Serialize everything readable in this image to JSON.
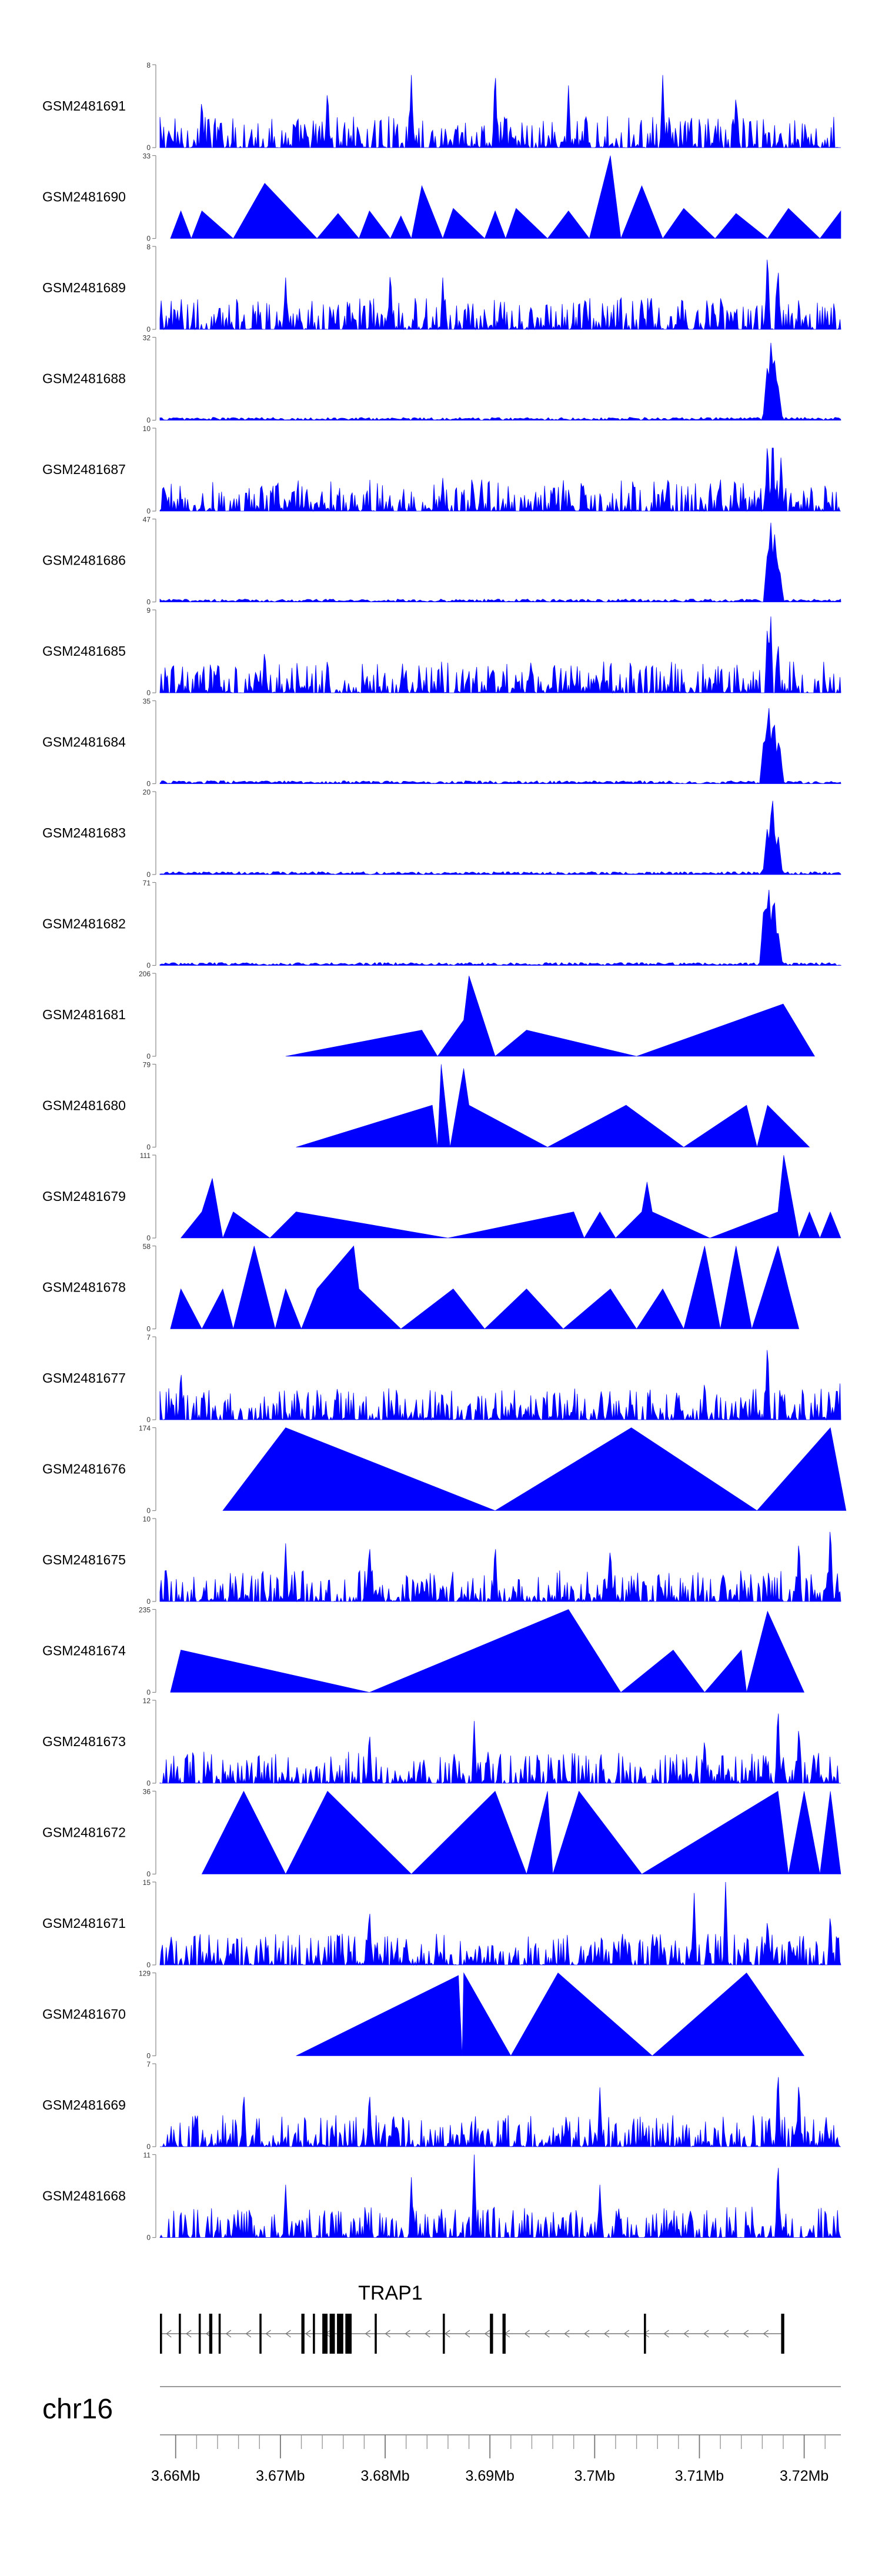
{
  "chart_data": {
    "type": "area",
    "genome": {
      "chromosome": "chr16",
      "x_range_mb": [
        3.6585,
        3.7235
      ],
      "x_ticks_mb": [
        3.66,
        3.67,
        3.68,
        3.69,
        3.7,
        3.71,
        3.72
      ],
      "x_tick_labels": [
        "3.66Mb",
        "3.67Mb",
        "3.68Mb",
        "3.69Mb",
        "3.7Mb",
        "3.71Mb",
        "3.72Mb"
      ]
    },
    "fill_color": "#0000ff",
    "series": [
      {
        "name": "GSM2481691",
        "ymax": 8,
        "ymax_label": "8",
        "ymin_label": "0",
        "style": "dense",
        "peaks": [
          [
            3.6625,
            5
          ],
          [
            3.6745,
            6
          ],
          [
            3.6825,
            7
          ],
          [
            3.6905,
            8
          ],
          [
            3.6975,
            6
          ],
          [
            3.7065,
            7
          ],
          [
            3.7135,
            5.5
          ]
        ]
      },
      {
        "name": "GSM2481690",
        "ymax": 33,
        "ymax_label": "33",
        "ymin_label": "0",
        "style": "sparse",
        "points": [
          [
            3.6595,
            0
          ],
          [
            3.6605,
            11
          ],
          [
            3.6615,
            0
          ],
          [
            3.6625,
            11
          ],
          [
            3.6655,
            0
          ],
          [
            3.6685,
            22
          ],
          [
            3.6735,
            0
          ],
          [
            3.6755,
            10
          ],
          [
            3.6775,
            0
          ],
          [
            3.6785,
            11
          ],
          [
            3.6805,
            0
          ],
          [
            3.6815,
            9
          ],
          [
            3.6825,
            0
          ],
          [
            3.6835,
            21
          ],
          [
            3.6855,
            0
          ],
          [
            3.6865,
            12
          ],
          [
            3.6895,
            0
          ],
          [
            3.6905,
            11
          ],
          [
            3.6915,
            0
          ],
          [
            3.6925,
            12
          ],
          [
            3.6955,
            0
          ],
          [
            3.6975,
            11
          ],
          [
            3.6995,
            0
          ],
          [
            3.7015,
            33
          ],
          [
            3.7025,
            0
          ],
          [
            3.7045,
            21
          ],
          [
            3.7065,
            0
          ],
          [
            3.7085,
            12
          ],
          [
            3.7115,
            0
          ],
          [
            3.7135,
            10
          ],
          [
            3.7165,
            0
          ],
          [
            3.7185,
            12
          ],
          [
            3.7215,
            0
          ],
          [
            3.7235,
            11
          ]
        ]
      },
      {
        "name": "GSM2481689",
        "ymax": 8,
        "ymax_label": "8",
        "ymin_label": "0",
        "style": "dense",
        "peaks": [
          [
            3.6705,
            5
          ],
          [
            3.6805,
            6
          ],
          [
            3.6855,
            5
          ],
          [
            3.7165,
            8
          ],
          [
            3.7175,
            6.5
          ]
        ]
      },
      {
        "name": "GSM2481688",
        "ymax": 32,
        "ymax_label": "32",
        "ymin_label": "0",
        "style": "low",
        "peaks": [
          [
            3.7165,
            22
          ],
          [
            3.71685,
            32
          ],
          [
            3.7172,
            24
          ],
          [
            3.7175,
            14
          ]
        ]
      },
      {
        "name": "GSM2481687",
        "ymax": 10,
        "ymax_label": "10",
        "ymin_label": "0",
        "style": "dense",
        "peaks": [
          [
            3.6725,
            3
          ],
          [
            3.6855,
            4
          ],
          [
            3.7165,
            9
          ],
          [
            3.717,
            10
          ],
          [
            3.7178,
            7
          ]
        ]
      },
      {
        "name": "GSM2481686",
        "ymax": 47,
        "ymax_label": "47",
        "ymin_label": "0",
        "style": "low",
        "peaks": [
          [
            3.71655,
            32
          ],
          [
            3.7168,
            47
          ],
          [
            3.7172,
            40
          ],
          [
            3.7176,
            22
          ]
        ]
      },
      {
        "name": "GSM2481685",
        "ymax": 9,
        "ymax_label": "9",
        "ymin_label": "0",
        "style": "dense",
        "peaks": [
          [
            3.6685,
            5
          ],
          [
            3.6745,
            4
          ],
          [
            3.7165,
            8
          ],
          [
            3.7168,
            9
          ],
          [
            3.7175,
            6
          ]
        ]
      },
      {
        "name": "GSM2481684",
        "ymax": 35,
        "ymax_label": "35",
        "ymin_label": "0",
        "style": "low",
        "peaks": [
          [
            3.7162,
            22
          ],
          [
            3.7166,
            35
          ],
          [
            3.7171,
            30
          ],
          [
            3.7176,
            20
          ]
        ]
      },
      {
        "name": "GSM2481683",
        "ymax": 20,
        "ymax_label": "20",
        "ymin_label": "0",
        "style": "low",
        "peaks": [
          [
            3.7165,
            12
          ],
          [
            3.71695,
            20
          ],
          [
            3.7175,
            10
          ]
        ]
      },
      {
        "name": "GSM2481682",
        "ymax": 71,
        "ymax_label": "71",
        "ymin_label": "0",
        "style": "low",
        "peaks": [
          [
            3.7162,
            58
          ],
          [
            3.7166,
            71
          ],
          [
            3.7171,
            65
          ],
          [
            3.7175,
            30
          ]
        ]
      },
      {
        "name": "GSM2481681",
        "ymax": 206,
        "ymax_label": "206",
        "ymin_label": "0",
        "style": "sparse",
        "points": [
          [
            3.6705,
            0
          ],
          [
            3.6835,
            65
          ],
          [
            3.685,
            0
          ],
          [
            3.6875,
            90
          ],
          [
            3.688,
            200
          ],
          [
            3.6905,
            0
          ],
          [
            3.6935,
            65
          ],
          [
            3.704,
            0
          ],
          [
            3.718,
            130
          ],
          [
            3.721,
            0
          ]
        ]
      },
      {
        "name": "GSM2481680",
        "ymax": 79,
        "ymax_label": "79",
        "ymin_label": "0",
        "style": "sparse",
        "points": [
          [
            3.6715,
            0
          ],
          [
            3.6845,
            40
          ],
          [
            3.685,
            0
          ],
          [
            3.68535,
            79
          ],
          [
            3.6862,
            0
          ],
          [
            3.6875,
            75
          ],
          [
            3.688,
            40
          ],
          [
            3.6955,
            0
          ],
          [
            3.703,
            40
          ],
          [
            3.7085,
            0
          ],
          [
            3.7145,
            40
          ],
          [
            3.7155,
            0
          ],
          [
            3.7165,
            40
          ],
          [
            3.7205,
            0
          ]
        ]
      },
      {
        "name": "GSM2481679",
        "ymax": 111,
        "ymax_label": "111",
        "ymin_label": "0",
        "style": "sparse",
        "points": [
          [
            3.6605,
            0
          ],
          [
            3.6625,
            35
          ],
          [
            3.6635,
            80
          ],
          [
            3.6645,
            0
          ],
          [
            3.6655,
            35
          ],
          [
            3.669,
            0
          ],
          [
            3.6715,
            35
          ],
          [
            3.686,
            0
          ],
          [
            3.698,
            35
          ],
          [
            3.699,
            0
          ],
          [
            3.7005,
            35
          ],
          [
            3.702,
            0
          ],
          [
            3.7045,
            35
          ],
          [
            3.705,
            75
          ],
          [
            3.7055,
            35
          ],
          [
            3.711,
            0
          ],
          [
            3.7175,
            35
          ],
          [
            3.71805,
            111
          ],
          [
            3.7195,
            0
          ],
          [
            3.7205,
            35
          ],
          [
            3.7215,
            0
          ],
          [
            3.7225,
            35
          ],
          [
            3.7235,
            0
          ]
        ]
      },
      {
        "name": "GSM2481678",
        "ymax": 58,
        "ymax_label": "58",
        "ymin_label": "0",
        "style": "sparse",
        "points": [
          [
            3.6595,
            0
          ],
          [
            3.6605,
            28
          ],
          [
            3.6625,
            0
          ],
          [
            3.6645,
            28
          ],
          [
            3.6655,
            0
          ],
          [
            3.6675,
            58
          ],
          [
            3.6695,
            0
          ],
          [
            3.6705,
            28
          ],
          [
            3.672,
            0
          ],
          [
            3.6735,
            28
          ],
          [
            3.677,
            58
          ],
          [
            3.6775,
            28
          ],
          [
            3.6815,
            0
          ],
          [
            3.6865,
            28
          ],
          [
            3.6895,
            0
          ],
          [
            3.6935,
            28
          ],
          [
            3.697,
            0
          ],
          [
            3.7015,
            28
          ],
          [
            3.704,
            0
          ],
          [
            3.7065,
            28
          ],
          [
            3.7085,
            0
          ],
          [
            3.7105,
            58
          ],
          [
            3.712,
            0
          ],
          [
            3.7135,
            58
          ],
          [
            3.715,
            0
          ],
          [
            3.7175,
            58
          ],
          [
            3.7185,
            28
          ],
          [
            3.7195,
            0
          ]
        ]
      },
      {
        "name": "GSM2481677",
        "ymax": 7,
        "ymax_label": "7",
        "ymin_label": "0",
        "style": "dense",
        "peaks": [
          [
            3.6605,
            4.5
          ],
          [
            3.7165,
            7
          ],
          [
            3.7235,
            4.5
          ],
          [
            3.7105,
            3.5
          ]
        ]
      },
      {
        "name": "GSM2481676",
        "ymax": 174,
        "ymax_label": "174",
        "ymin_label": "0",
        "style": "sparse",
        "points": [
          [
            3.6645,
            0
          ],
          [
            3.6705,
            174
          ],
          [
            3.6905,
            0
          ],
          [
            3.7035,
            174
          ],
          [
            3.7155,
            0
          ],
          [
            3.7225,
            174
          ],
          [
            3.724,
            0
          ]
        ]
      },
      {
        "name": "GSM2481675",
        "ymax": 10,
        "ymax_label": "10",
        "ymin_label": "0",
        "style": "dense",
        "peaks": [
          [
            3.6705,
            7
          ],
          [
            3.6785,
            7.5
          ],
          [
            3.6905,
            7.5
          ],
          [
            3.7015,
            7
          ],
          [
            3.7225,
            10
          ],
          [
            3.7195,
            8
          ]
        ]
      },
      {
        "name": "GSM2481674",
        "ymax": 235,
        "ymax_label": "235",
        "ymin_label": "0",
        "style": "sparse",
        "points": [
          [
            3.6595,
            0
          ],
          [
            3.6605,
            120
          ],
          [
            3.6785,
            0
          ],
          [
            3.6975,
            235
          ],
          [
            3.7025,
            0
          ],
          [
            3.7075,
            120
          ],
          [
            3.7105,
            0
          ],
          [
            3.714,
            120
          ],
          [
            3.7145,
            0
          ],
          [
            3.7165,
            230
          ],
          [
            3.72,
            0
          ]
        ]
      },
      {
        "name": "GSM2481673",
        "ymax": 12,
        "ymax_label": "12",
        "ymin_label": "0",
        "style": "dense",
        "peaks": [
          [
            3.6785,
            8
          ],
          [
            3.6885,
            9
          ],
          [
            3.7105,
            7
          ],
          [
            3.7175,
            12
          ],
          [
            3.7195,
            9
          ]
        ]
      },
      {
        "name": "GSM2481672",
        "ymax": 36,
        "ymax_label": "36",
        "ymin_label": "0",
        "style": "sparse",
        "points": [
          [
            3.6625,
            0
          ],
          [
            3.6665,
            36
          ],
          [
            3.6705,
            0
          ],
          [
            3.6745,
            36
          ],
          [
            3.6825,
            0
          ],
          [
            3.6905,
            36
          ],
          [
            3.6935,
            0
          ],
          [
            3.6955,
            36
          ],
          [
            3.696,
            0
          ],
          [
            3.6985,
            36
          ],
          [
            3.7045,
            0
          ],
          [
            3.7175,
            36
          ],
          [
            3.7185,
            0
          ],
          [
            3.72,
            36
          ],
          [
            3.7215,
            0
          ],
          [
            3.7225,
            36
          ],
          [
            3.7235,
            0
          ]
        ]
      },
      {
        "name": "GSM2481671",
        "ymax": 15,
        "ymax_label": "15",
        "ymin_label": "0",
        "style": "dense",
        "peaks": [
          [
            3.6785,
            11
          ],
          [
            3.7095,
            13
          ],
          [
            3.7125,
            15
          ],
          [
            3.7165,
            9
          ],
          [
            3.7225,
            10
          ]
        ]
      },
      {
        "name": "GSM2481670",
        "ymax": 129,
        "ymax_label": "129",
        "ymin_label": "0",
        "style": "sparse",
        "points": [
          [
            3.6715,
            0
          ],
          [
            3.687,
            125
          ],
          [
            3.68735,
            0
          ],
          [
            3.6875,
            129
          ],
          [
            3.692,
            0
          ],
          [
            3.6965,
            129
          ],
          [
            3.7055,
            0
          ],
          [
            3.7145,
            129
          ],
          [
            3.72,
            0
          ]
        ]
      },
      {
        "name": "GSM2481669",
        "ymax": 7,
        "ymax_label": "7",
        "ymin_label": "0",
        "style": "dense",
        "peaks": [
          [
            3.6665,
            5
          ],
          [
            3.6785,
            5
          ],
          [
            3.7005,
            5
          ],
          [
            3.7175,
            7
          ],
          [
            3.7195,
            6
          ]
        ]
      },
      {
        "name": "GSM2481668",
        "ymax": 11,
        "ymax_label": "11",
        "ymin_label": "0",
        "style": "dense",
        "peaks": [
          [
            3.6705,
            7
          ],
          [
            3.6825,
            8
          ],
          [
            3.6885,
            11
          ],
          [
            3.7175,
            11
          ],
          [
            3.7005,
            7
          ]
        ]
      }
    ],
    "gene": {
      "name": "TRAP1",
      "strand": "-",
      "start_mb": 3.6585,
      "end_mb": 3.718,
      "exons": [
        [
          3.6585,
          3.6587
        ],
        [
          3.6603,
          3.6605
        ],
        [
          3.6622,
          3.6624
        ],
        [
          3.6632,
          3.6635
        ],
        [
          3.6641,
          3.6643
        ],
        [
          3.668,
          3.6682
        ],
        [
          3.672,
          3.6723
        ],
        [
          3.6731,
          3.6733
        ],
        [
          3.674,
          3.6745
        ],
        [
          3.6747,
          3.6752
        ],
        [
          3.6754,
          3.676
        ],
        [
          3.6762,
          3.6768
        ],
        [
          3.679,
          3.6792
        ],
        [
          3.6855,
          3.6857
        ],
        [
          3.69,
          3.6903
        ],
        [
          3.6912,
          3.6915
        ],
        [
          3.7047,
          3.7049
        ],
        [
          3.7178,
          3.7181
        ]
      ]
    }
  }
}
